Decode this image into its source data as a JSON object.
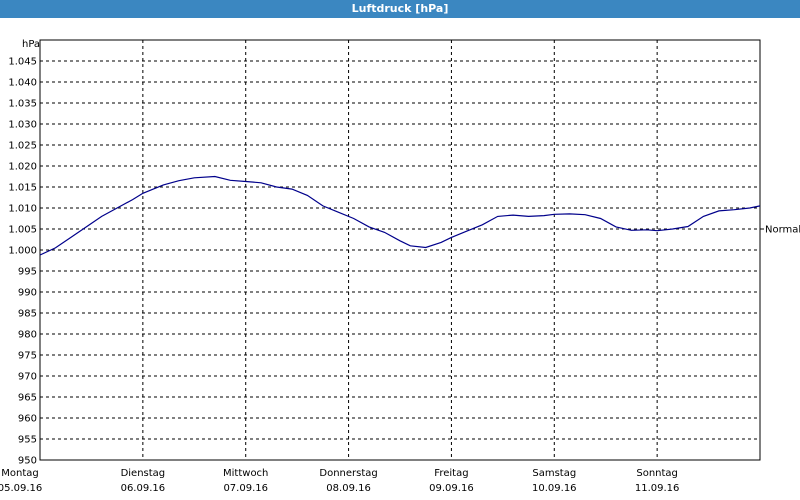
{
  "header": {
    "title": "Luftdruck [hPa]"
  },
  "colors": {
    "titlebar": "#3b87c1",
    "line": "#00008b",
    "grid": "#000000"
  },
  "chart_data": {
    "type": "line",
    "title": "Luftdruck [hPa]",
    "ylabel": "hPa",
    "ylim": [
      950,
      1050
    ],
    "y_ticks": [
      "1.045",
      "1.040",
      "1.035",
      "1.030",
      "1.025",
      "1.020",
      "1.015",
      "1.010",
      "1.005",
      "1.000",
      "995",
      "990",
      "985",
      "980",
      "975",
      "970",
      "965",
      "960",
      "955",
      "950"
    ],
    "y_tick_values": [
      1045,
      1040,
      1035,
      1030,
      1025,
      1020,
      1015,
      1010,
      1005,
      1000,
      995,
      990,
      985,
      980,
      975,
      970,
      965,
      960,
      955,
      950
    ],
    "xlim": [
      0,
      7
    ],
    "x_ticks": [
      {
        "x": 0,
        "day": "Montag",
        "date": "05.09.16"
      },
      {
        "x": 1,
        "day": "Dienstag",
        "date": "06.09.16"
      },
      {
        "x": 2,
        "day": "Mittwoch",
        "date": "07.09.16"
      },
      {
        "x": 3,
        "day": "Donnerstag",
        "date": "08.09.16"
      },
      {
        "x": 4,
        "day": "Freitag",
        "date": "09.09.16"
      },
      {
        "x": 5,
        "day": "Samstag",
        "date": "10.09.16"
      },
      {
        "x": 6,
        "day": "Sonntag",
        "date": "11.09.16"
      }
    ],
    "reference_line": {
      "label": "Normal",
      "value": 1005
    },
    "grid": true,
    "series": [
      {
        "x": [
          0,
          0.15,
          0.3,
          0.45,
          0.6,
          0.75,
          0.9,
          1.0,
          1.2,
          1.35,
          1.5,
          1.7,
          1.85,
          2.0,
          2.15,
          2.3,
          2.45,
          2.6,
          2.75,
          2.9,
          3.05,
          3.2,
          3.35,
          3.5,
          3.6,
          3.75,
          3.9,
          4.0,
          4.15,
          4.3,
          4.45,
          4.6,
          4.75,
          4.9,
          5.0,
          5.15,
          5.3,
          5.45,
          5.6,
          5.75,
          5.9,
          6.0,
          6.15,
          6.3,
          6.45,
          6.6,
          6.75,
          6.9,
          7.0
        ],
        "values": [
          998.8,
          1000.5,
          1003.0,
          1005.5,
          1008.0,
          1010.0,
          1012.0,
          1013.5,
          1015.5,
          1016.5,
          1017.2,
          1017.5,
          1016.6,
          1016.3,
          1016.0,
          1015.0,
          1014.5,
          1013.0,
          1010.5,
          1009.0,
          1007.5,
          1005.5,
          1004.2,
          1002.2,
          1001.0,
          1000.6,
          1001.8,
          1003.0,
          1004.5,
          1006.0,
          1008.0,
          1008.3,
          1008.0,
          1008.2,
          1008.5,
          1008.6,
          1008.4,
          1007.5,
          1005.5,
          1004.7,
          1004.8,
          1004.6,
          1005.0,
          1005.6,
          1008.0,
          1009.3,
          1009.6,
          1010.0,
          1010.5
        ]
      }
    ]
  }
}
